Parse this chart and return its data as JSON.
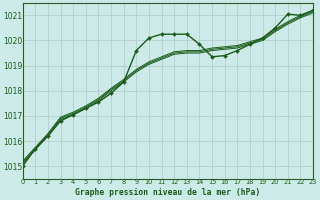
{
  "title": "Graphe pression niveau de la mer (hPa)",
  "bg_color": "#cceae7",
  "grid_color": "#b0c8c5",
  "line_color": "#1a5c1a",
  "xlim": [
    0,
    23
  ],
  "ylim": [
    1014.5,
    1021.5
  ],
  "yticks": [
    1015,
    1016,
    1017,
    1018,
    1019,
    1020,
    1021
  ],
  "xtick_labels": [
    "0",
    "1",
    "2",
    "3",
    "4",
    "5",
    "6",
    "7",
    "8",
    "9",
    "10",
    "11",
    "12",
    "13",
    "14",
    "15",
    "16",
    "17",
    "18",
    "19",
    "20",
    "21",
    "22",
    "23"
  ],
  "series": [
    [
      1015.0,
      1015.7,
      1016.2,
      1016.8,
      1017.05,
      1017.3,
      1017.55,
      1017.9,
      1018.35,
      1019.6,
      1020.1,
      1020.25,
      1020.25,
      1020.25,
      1019.85,
      1019.35,
      1019.4,
      1019.6,
      1019.85,
      1020.1,
      1020.5,
      1021.05,
      1021.0,
      1021.2
    ],
    [
      1015.1,
      1015.65,
      1016.2,
      1016.85,
      1017.05,
      1017.3,
      1017.6,
      1018.0,
      1018.35,
      1018.75,
      1019.05,
      1019.25,
      1019.45,
      1019.5,
      1019.5,
      1019.6,
      1019.65,
      1019.7,
      1019.85,
      1020.0,
      1020.35,
      1020.65,
      1020.9,
      1021.1
    ],
    [
      1015.15,
      1015.7,
      1016.25,
      1016.9,
      1017.1,
      1017.35,
      1017.65,
      1018.05,
      1018.4,
      1018.8,
      1019.1,
      1019.3,
      1019.5,
      1019.55,
      1019.55,
      1019.65,
      1019.7,
      1019.75,
      1019.9,
      1020.05,
      1020.4,
      1020.7,
      1020.95,
      1021.15
    ],
    [
      1015.2,
      1015.75,
      1016.3,
      1016.95,
      1017.15,
      1017.4,
      1017.7,
      1018.1,
      1018.45,
      1018.85,
      1019.15,
      1019.35,
      1019.55,
      1019.6,
      1019.6,
      1019.7,
      1019.75,
      1019.8,
      1019.95,
      1020.1,
      1020.45,
      1020.75,
      1021.0,
      1021.2
    ]
  ]
}
